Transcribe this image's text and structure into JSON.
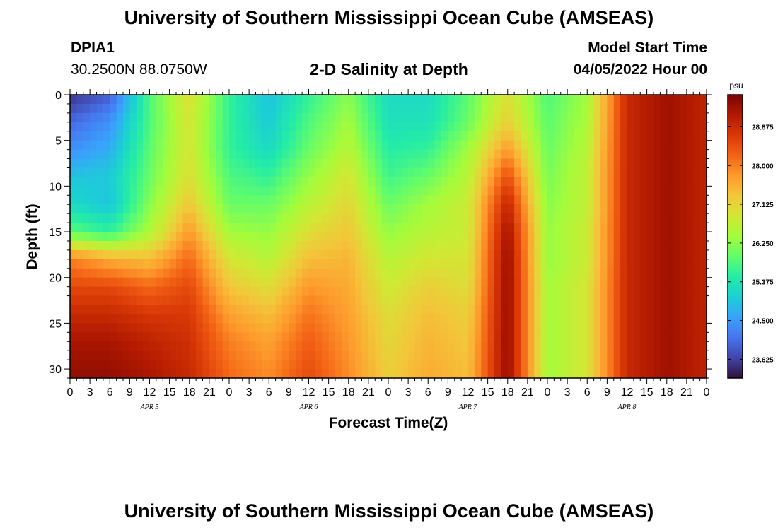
{
  "header": {
    "title": "University of Southern Mississippi Ocean Cube (AMSEAS)",
    "station_id": "DPIA1",
    "station_coords": "30.2500N  88.0750W",
    "plot_title": "2-D Salinity at Depth",
    "model_start_label": "Model Start Time",
    "model_start_value": "04/05/2022 Hour 00"
  },
  "footer": {
    "title": "University of Southern Mississippi Ocean Cube (AMSEAS)"
  },
  "chart_data": {
    "type": "heatmap",
    "title": "2-D Salinity at Depth",
    "xlabel": "Forecast Time(Z)",
    "ylabel": "Depth (ft)",
    "x_range_hours": [
      0,
      96
    ],
    "y_range_ft": [
      0,
      31
    ],
    "x_tick_labels": [
      "0",
      "3",
      "6",
      "9",
      "12",
      "15",
      "18",
      "21",
      "0",
      "3",
      "6",
      "9",
      "12",
      "15",
      "18",
      "21",
      "0",
      "3",
      "6",
      "9",
      "12",
      "15",
      "18",
      "21",
      "0",
      "3",
      "6",
      "9",
      "12",
      "15",
      "18",
      "21",
      "0"
    ],
    "y_ticks": [
      0,
      5,
      10,
      15,
      20,
      25,
      30
    ],
    "y_tick_labels": [
      "0",
      "5",
      "10",
      "15",
      "20",
      "25",
      "30"
    ],
    "day_labels": [
      "APR 5",
      "APR 6",
      "APR 7",
      "APR 8"
    ],
    "colorbar": {
      "unit": "psu",
      "range": [
        23.2,
        29.6
      ],
      "ticks": [
        23.625,
        24.5,
        25.375,
        26.25,
        27.125,
        28.0,
        28.875
      ],
      "tick_labels": [
        "23.625",
        "24.500",
        "25.375",
        "26.250",
        "27.125",
        "28.000",
        "28.875"
      ],
      "colors": [
        "#30123b",
        "#4145ab",
        "#4675ed",
        "#39a2fc",
        "#1bcfd4",
        "#24eca6",
        "#61fc6c",
        "#a4fc3b",
        "#d1e834",
        "#f3c63a",
        "#fe9b2d",
        "#f36315",
        "#d93806",
        "#b11901",
        "#7a0402"
      ]
    },
    "depth_levels_ft": [
      0,
      3,
      6,
      9,
      12,
      15,
      18,
      21,
      24,
      27,
      31
    ],
    "time_hours": [
      0,
      6,
      12,
      18,
      24,
      30,
      36,
      42,
      48,
      54,
      60,
      66,
      72,
      78,
      84,
      90,
      96
    ],
    "salinity_psu": [
      [
        23.5,
        23.9,
        25.8,
        27.0,
        25.6,
        24.9,
        25.6,
        26.2,
        25.2,
        25.2,
        25.9,
        27.0,
        25.8,
        26.4,
        28.9,
        29.3,
        29.0
      ],
      [
        24.0,
        24.4,
        25.8,
        26.9,
        25.6,
        25.0,
        25.8,
        26.4,
        25.3,
        25.3,
        26.0,
        27.2,
        25.9,
        26.5,
        28.9,
        29.3,
        29.0
      ],
      [
        24.4,
        24.7,
        25.9,
        26.9,
        25.6,
        25.2,
        26.0,
        26.6,
        25.5,
        25.6,
        26.4,
        27.8,
        26.0,
        26.6,
        28.9,
        29.3,
        29.0
      ],
      [
        24.9,
        25.0,
        26.0,
        27.0,
        25.8,
        25.6,
        26.3,
        26.9,
        25.7,
        26.0,
        26.6,
        28.5,
        26.1,
        26.7,
        28.9,
        29.3,
        29.0
      ],
      [
        25.2,
        24.9,
        26.2,
        27.3,
        26.0,
        26.0,
        26.6,
        27.1,
        26.0,
        26.4,
        26.8,
        29.0,
        26.2,
        26.7,
        28.9,
        29.3,
        29.0
      ],
      [
        25.9,
        25.6,
        26.5,
        27.8,
        26.4,
        26.3,
        27.0,
        27.3,
        26.3,
        26.6,
        26.8,
        29.3,
        26.3,
        26.8,
        28.9,
        29.3,
        29.0
      ],
      [
        28.0,
        27.6,
        27.4,
        28.2,
        26.9,
        26.6,
        27.4,
        27.5,
        26.6,
        26.9,
        26.9,
        29.4,
        26.3,
        26.8,
        28.9,
        29.3,
        29.0
      ],
      [
        28.5,
        28.5,
        28.2,
        28.5,
        27.3,
        27.0,
        27.8,
        27.6,
        26.8,
        27.2,
        27.0,
        29.4,
        26.4,
        26.9,
        28.9,
        29.3,
        29.0
      ],
      [
        28.9,
        28.9,
        28.7,
        28.7,
        27.7,
        27.4,
        28.1,
        27.7,
        27.0,
        27.4,
        27.2,
        29.4,
        26.4,
        26.9,
        28.9,
        29.3,
        29.0
      ],
      [
        29.2,
        29.2,
        29.0,
        28.8,
        28.0,
        27.7,
        28.3,
        27.8,
        27.1,
        27.5,
        27.3,
        29.4,
        26.4,
        26.9,
        28.9,
        29.3,
        29.0
      ],
      [
        29.4,
        29.4,
        29.2,
        28.9,
        28.2,
        27.9,
        28.5,
        27.9,
        27.2,
        27.6,
        27.4,
        29.4,
        26.4,
        26.9,
        28.9,
        29.3,
        29.0
      ]
    ]
  }
}
